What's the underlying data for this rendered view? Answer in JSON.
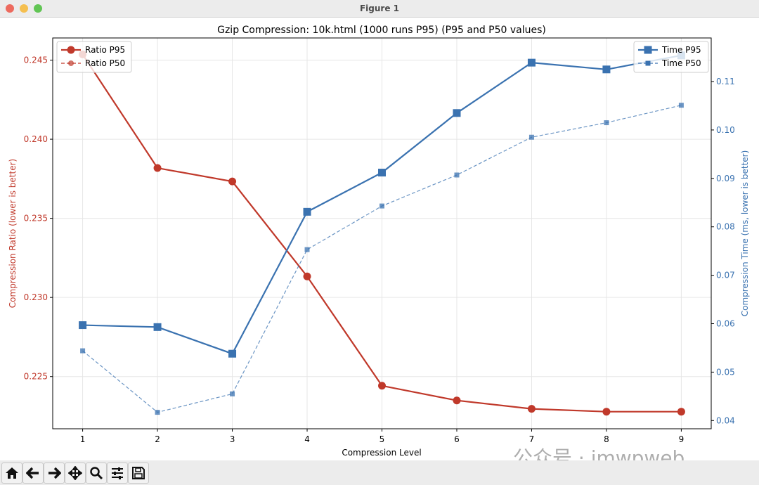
{
  "window": {
    "title": "Figure 1",
    "traffic_lights": [
      "#ed6a5e",
      "#f5bf4f",
      "#61c554"
    ]
  },
  "toolbar": {
    "buttons": [
      "home-icon",
      "back-icon",
      "forward-icon",
      "pan-icon",
      "zoom-icon",
      "configure-subplots-icon",
      "save-icon"
    ]
  },
  "watermark": "公众号 · imwpweb",
  "chart_data": {
    "type": "line",
    "title": "Gzip Compression: 10k.html (1000 runs P95) (P95 and P50 values)",
    "xlabel": "Compression Level",
    "ylabel_left": "Compression Ratio (lower is better)",
    "ylabel_right": "Compression Time (ms, lower is better)",
    "x": [
      1,
      2,
      3,
      4,
      5,
      6,
      7,
      8,
      9
    ],
    "xlim": [
      0.6,
      9.4
    ],
    "ylim_left": [
      0.2217,
      0.2464
    ],
    "ylim_right": [
      0.0383,
      0.119
    ],
    "xticks": [
      "1",
      "2",
      "3",
      "4",
      "5",
      "6",
      "7",
      "8",
      "9"
    ],
    "yticks_left": [
      "0.225",
      "0.230",
      "0.235",
      "0.240",
      "0.245"
    ],
    "yticks_right": [
      "0.04",
      "0.05",
      "0.06",
      "0.07",
      "0.08",
      "0.09",
      "0.10",
      "0.11"
    ],
    "grid": true,
    "colors": {
      "ratio": "#c0392b",
      "time": "#3a72b0"
    },
    "series": [
      {
        "name": "Ratio P95",
        "axis": "left",
        "marker": "circle",
        "style": "solid",
        "values": [
          0.24536,
          0.23818,
          0.23733,
          0.23133,
          0.22442,
          0.22349,
          0.22296,
          0.22278,
          0.22278
        ]
      },
      {
        "name": "Ratio P50",
        "axis": "left",
        "marker": "circle",
        "style": "dashed",
        "values": [
          0.24536,
          0.23818,
          0.23733,
          0.23133,
          0.22442,
          0.22349,
          0.22296,
          0.22278,
          0.22278
        ]
      },
      {
        "name": "Time P95",
        "axis": "right",
        "marker": "square",
        "style": "solid",
        "values": [
          0.0597,
          0.0593,
          0.0538,
          0.0831,
          0.0912,
          0.1035,
          0.1139,
          0.1125,
          0.1154
        ]
      },
      {
        "name": "Time P50",
        "axis": "right",
        "marker": "square",
        "style": "dashed",
        "values": [
          0.0544,
          0.0417,
          0.0455,
          0.0753,
          0.0843,
          0.0907,
          0.0985,
          0.1015,
          0.1051
        ]
      }
    ],
    "legends": {
      "left": "top-left",
      "right": "top-right"
    }
  }
}
